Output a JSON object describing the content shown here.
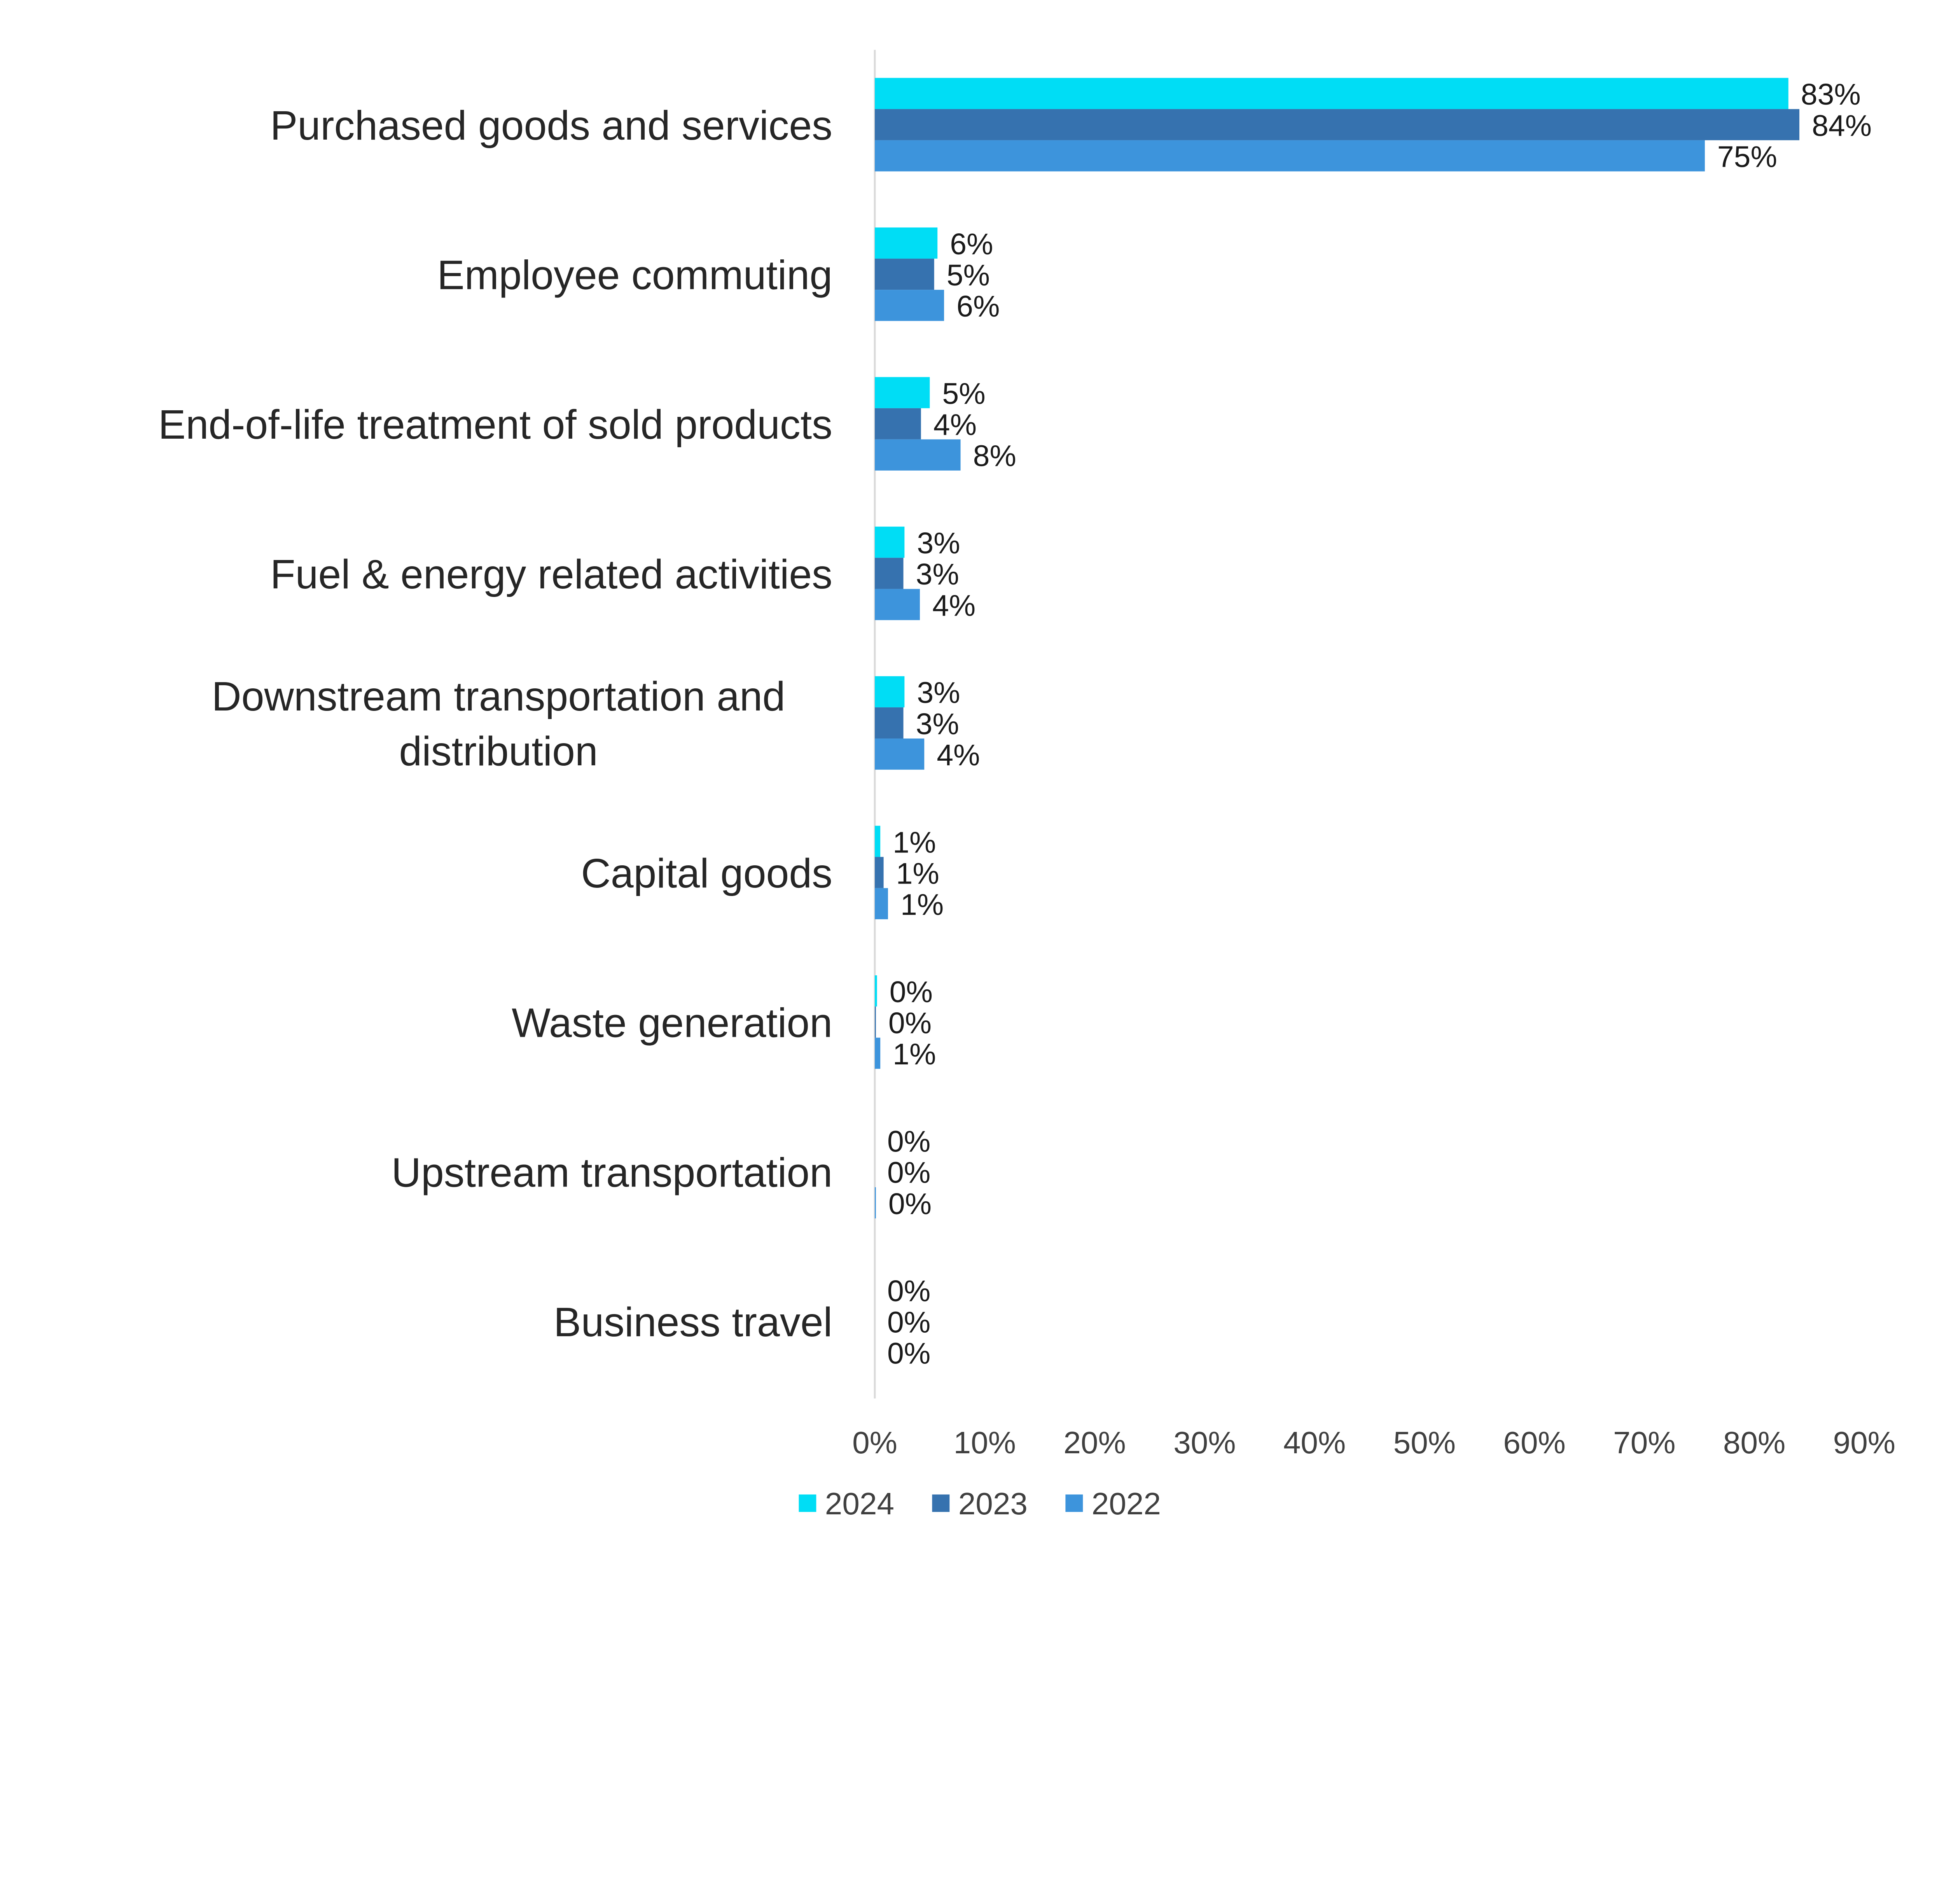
{
  "chart_data": {
    "type": "bar",
    "orientation": "horizontal",
    "categories": [
      [
        "Purchased goods and services"
      ],
      [
        "Employee commuting"
      ],
      [
        "End-of-life treatment of sold products"
      ],
      [
        "Fuel & energy related activities"
      ],
      [
        "Downstream transportation and",
        "distribution"
      ],
      [
        "Capital goods"
      ],
      [
        "Waste generation"
      ],
      [
        "Upstream transportation"
      ],
      [
        "Business travel"
      ]
    ],
    "series": [
      {
        "name": "2024",
        "color": "#00DDF5",
        "values": [
          83.1,
          5.7,
          5.0,
          2.7,
          2.7,
          0.5,
          0.2,
          0,
          0
        ],
        "labels": [
          "83%",
          "6%",
          "5%",
          "3%",
          "3%",
          "1%",
          "0%",
          "0%",
          "0%"
        ]
      },
      {
        "name": "2023",
        "color": "#3672AF",
        "values": [
          84.1,
          5.4,
          4.2,
          2.6,
          2.6,
          0.8,
          0.1,
          0,
          0
        ],
        "labels": [
          "84%",
          "5%",
          "4%",
          "3%",
          "3%",
          "1%",
          "0%",
          "0%",
          "0%"
        ]
      },
      {
        "name": "2022",
        "color": "#3D94DC",
        "values": [
          75.5,
          6.3,
          7.8,
          4.1,
          4.5,
          1.2,
          0.5,
          0.1,
          0
        ],
        "labels": [
          "75%",
          "6%",
          "8%",
          "4%",
          "4%",
          "1%",
          "1%",
          "0%",
          "0%"
        ]
      }
    ],
    "xlim": [
      0,
      90
    ],
    "xticks": [
      "0%",
      "10%",
      "20%",
      "30%",
      "40%",
      "50%",
      "60%",
      "70%",
      "80%",
      "90%"
    ],
    "title": "",
    "xlabel": "",
    "ylabel": "",
    "grid": false,
    "legend": "bottom"
  }
}
